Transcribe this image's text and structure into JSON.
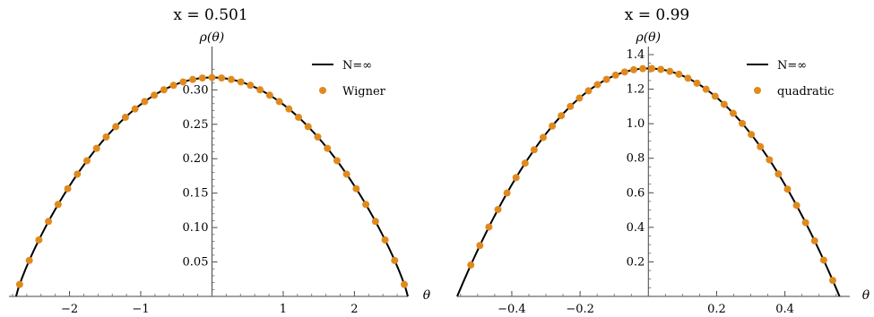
{
  "chart_data": [
    {
      "type": "line",
      "title": "x = 0.501",
      "ylabel": "ρ(θ)",
      "xlabel": "θ",
      "xlim": [
        -2.85,
        2.75
      ],
      "ylim": [
        0,
        0.333
      ],
      "xticks": [
        {
          "v": -2,
          "label": "−2"
        },
        {
          "v": -1,
          "label": "−1"
        },
        {
          "v": 1,
          "label": "1"
        },
        {
          "v": 2,
          "label": "2"
        }
      ],
      "yticks": [
        {
          "v": 0.05,
          "label": "0.05"
        },
        {
          "v": 0.1,
          "label": "0.10"
        },
        {
          "v": 0.15,
          "label": "0.15"
        },
        {
          "v": 0.2,
          "label": "0.20"
        },
        {
          "v": 0.25,
          "label": "0.25"
        },
        {
          "v": 0.3,
          "label": "0.30"
        }
      ],
      "curve": {
        "type": "wigner-like",
        "center": 0.0,
        "half_width": 2.75,
        "peak": 0.318
      },
      "points": {
        "x_start": -2.7,
        "x_step": 0.135,
        "count": 41
      },
      "series": [
        {
          "name": "N=∞",
          "kind": "line",
          "color": "#000000"
        },
        {
          "name": "Wigner",
          "kind": "points",
          "color": "#e08a1e"
        }
      ],
      "legend": "top-right"
    },
    {
      "type": "line",
      "title": "x = 0.99",
      "ylabel": "ρ(θ)",
      "xlabel": "θ",
      "xlim": [
        -0.56,
        0.59
      ],
      "ylim": [
        0,
        1.4
      ],
      "xticks": [
        {
          "v": -0.4,
          "label": "−0.4"
        },
        {
          "v": -0.2,
          "label": "−0.2"
        },
        {
          "v": 0.2,
          "label": "0.2"
        },
        {
          "v": 0.4,
          "label": "0.4"
        }
      ],
      "yticks": [
        {
          "v": 0.2,
          "label": "0.2"
        },
        {
          "v": 0.4,
          "label": "0.4"
        },
        {
          "v": 0.6,
          "label": "0.6"
        },
        {
          "v": 0.8,
          "label": "0.8"
        },
        {
          "v": 1.0,
          "label": "1.0"
        },
        {
          "v": 1.2,
          "label": "1.2"
        },
        {
          "v": 1.4,
          "label": "1.4"
        }
      ],
      "curve": {
        "type": "quadratic",
        "center": 0.0,
        "half_width": 0.56,
        "peak": 1.32
      },
      "points": {
        "x_start": -0.52,
        "x_step": 0.0265,
        "count": 41
      },
      "series": [
        {
          "name": "N=∞",
          "kind": "line",
          "color": "#000000"
        },
        {
          "name": "quadratic",
          "kind": "points",
          "color": "#e08a1e"
        }
      ],
      "legend": "top-right"
    }
  ]
}
